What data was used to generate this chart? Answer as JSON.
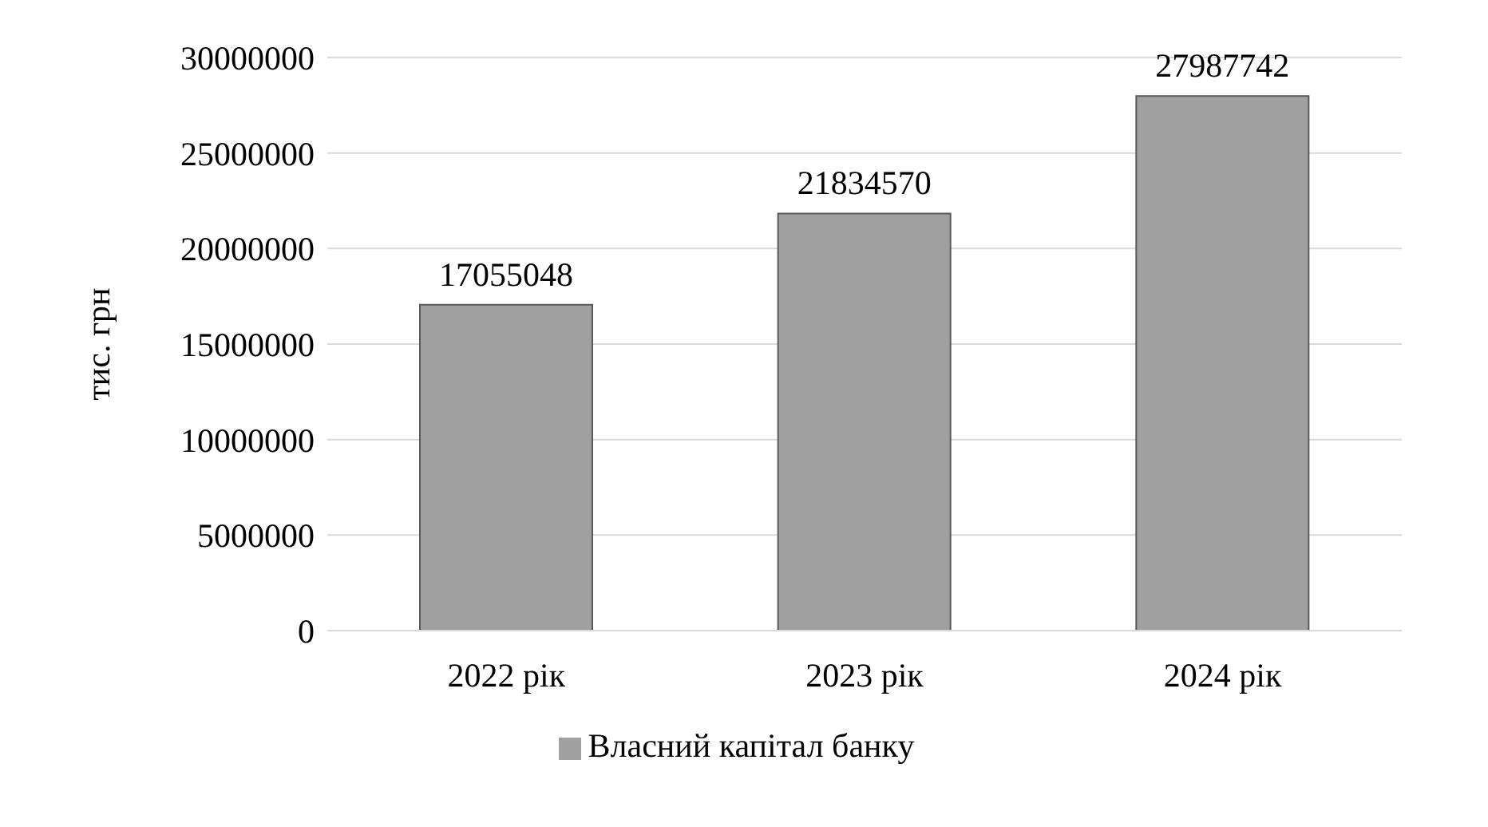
{
  "chart_data": {
    "type": "bar",
    "ylabel": "тис. грн",
    "categories": [
      "2022 рік",
      "2023 рік",
      "2024 рік"
    ],
    "series": [
      {
        "name": "Власний капітал банку",
        "color": "#a0a0a0",
        "values": [
          17055048,
          21834570,
          27987742
        ]
      }
    ],
    "ylim": [
      0,
      30000000
    ],
    "yticks": [
      0,
      5000000,
      10000000,
      15000000,
      20000000,
      25000000,
      30000000
    ],
    "grid": "y",
    "legend": "bottom",
    "data_labels": true
  }
}
